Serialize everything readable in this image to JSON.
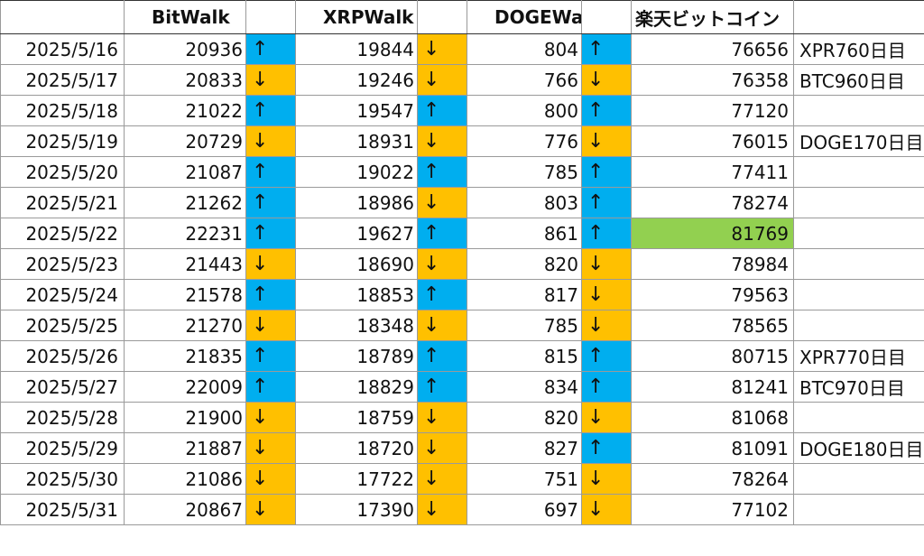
{
  "headers": {
    "date": "",
    "bitwalk": "BitWalk",
    "xrpwalk": "XRPWalk",
    "dogewalk": "DOGEWalk",
    "rakuten": "楽天ビットコイン",
    "note": ""
  },
  "colors": {
    "up": "#00aeef",
    "down": "#ffc000",
    "highlight": "#92d050"
  },
  "rows": [
    {
      "date": "2025/5/16",
      "bit": "20936",
      "bit_arrow": "↑",
      "xrp": "19844",
      "xrp_arrow": "↓",
      "doge": "804",
      "doge_arrow": "↑",
      "rakuten": "76656",
      "rakuten_highlight": false,
      "note": "XPR760日目"
    },
    {
      "date": "2025/5/17",
      "bit": "20833",
      "bit_arrow": "↓",
      "xrp": "19246",
      "xrp_arrow": "↓",
      "doge": "766",
      "doge_arrow": "↓",
      "rakuten": "76358",
      "rakuten_highlight": false,
      "note": "BTC960日目"
    },
    {
      "date": "2025/5/18",
      "bit": "21022",
      "bit_arrow": "↑",
      "xrp": "19547",
      "xrp_arrow": "↑",
      "doge": "800",
      "doge_arrow": "↑",
      "rakuten": "77120",
      "rakuten_highlight": false,
      "note": ""
    },
    {
      "date": "2025/5/19",
      "bit": "20729",
      "bit_arrow": "↓",
      "xrp": "18931",
      "xrp_arrow": "↓",
      "doge": "776",
      "doge_arrow": "↓",
      "rakuten": "76015",
      "rakuten_highlight": false,
      "note": "DOGE170日目"
    },
    {
      "date": "2025/5/20",
      "bit": "21087",
      "bit_arrow": "↑",
      "xrp": "19022",
      "xrp_arrow": "↑",
      "doge": "785",
      "doge_arrow": "↑",
      "rakuten": "77411",
      "rakuten_highlight": false,
      "note": ""
    },
    {
      "date": "2025/5/21",
      "bit": "21262",
      "bit_arrow": "↑",
      "xrp": "18986",
      "xrp_arrow": "↓",
      "doge": "803",
      "doge_arrow": "↑",
      "rakuten": "78274",
      "rakuten_highlight": false,
      "note": ""
    },
    {
      "date": "2025/5/22",
      "bit": "22231",
      "bit_arrow": "↑",
      "xrp": "19627",
      "xrp_arrow": "↑",
      "doge": "861",
      "doge_arrow": "↑",
      "rakuten": "81769",
      "rakuten_highlight": true,
      "note": ""
    },
    {
      "date": "2025/5/23",
      "bit": "21443",
      "bit_arrow": "↓",
      "xrp": "18690",
      "xrp_arrow": "↓",
      "doge": "820",
      "doge_arrow": "↓",
      "rakuten": "78984",
      "rakuten_highlight": false,
      "note": ""
    },
    {
      "date": "2025/5/24",
      "bit": "21578",
      "bit_arrow": "↑",
      "xrp": "18853",
      "xrp_arrow": "↑",
      "doge": "817",
      "doge_arrow": "↓",
      "rakuten": "79563",
      "rakuten_highlight": false,
      "note": ""
    },
    {
      "date": "2025/5/25",
      "bit": "21270",
      "bit_arrow": "↓",
      "xrp": "18348",
      "xrp_arrow": "↓",
      "doge": "785",
      "doge_arrow": "↓",
      "rakuten": "78565",
      "rakuten_highlight": false,
      "note": ""
    },
    {
      "date": "2025/5/26",
      "bit": "21835",
      "bit_arrow": "↑",
      "xrp": "18789",
      "xrp_arrow": "↑",
      "doge": "815",
      "doge_arrow": "↑",
      "rakuten": "80715",
      "rakuten_highlight": false,
      "note": "XPR770日目"
    },
    {
      "date": "2025/5/27",
      "bit": "22009",
      "bit_arrow": "↑",
      "xrp": "18829",
      "xrp_arrow": "↑",
      "doge": "834",
      "doge_arrow": "↑",
      "rakuten": "81241",
      "rakuten_highlight": false,
      "note": "BTC970日目"
    },
    {
      "date": "2025/5/28",
      "bit": "21900",
      "bit_arrow": "↓",
      "xrp": "18759",
      "xrp_arrow": "↓",
      "doge": "820",
      "doge_arrow": "↓",
      "rakuten": "81068",
      "rakuten_highlight": false,
      "note": ""
    },
    {
      "date": "2025/5/29",
      "bit": "21887",
      "bit_arrow": "↓",
      "xrp": "18720",
      "xrp_arrow": "↓",
      "doge": "827",
      "doge_arrow": "↑",
      "rakuten": "81091",
      "rakuten_highlight": false,
      "note": "DOGE180日目"
    },
    {
      "date": "2025/5/30",
      "bit": "21086",
      "bit_arrow": "↓",
      "xrp": "17722",
      "xrp_arrow": "↓",
      "doge": "751",
      "doge_arrow": "↓",
      "rakuten": "78264",
      "rakuten_highlight": false,
      "note": ""
    },
    {
      "date": "2025/5/31",
      "bit": "20867",
      "bit_arrow": "↓",
      "xrp": "17390",
      "xrp_arrow": "↓",
      "doge": "697",
      "doge_arrow": "↓",
      "rakuten": "77102",
      "rakuten_highlight": false,
      "note": ""
    }
  ]
}
